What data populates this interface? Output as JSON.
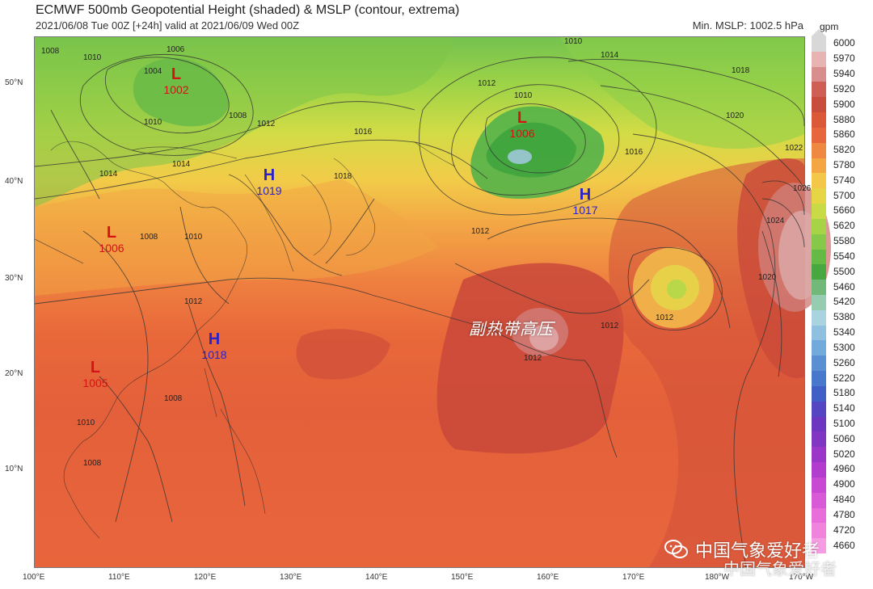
{
  "header": {
    "title": "ECMWF 500mb Geopotential Height (shaded) & MSLP (contour, extrema)",
    "subtitle": "2021/06/08 Tue 00Z [+24h] valid at 2021/06/09 Wed 00Z",
    "min_mslp": "Min. MSLP: 1002.5 hPa"
  },
  "map": {
    "latitude_labels": [
      "50°N",
      "40°N",
      "30°N",
      "20°N",
      "10°N"
    ],
    "longitude_labels": [
      "100°E",
      "110°E",
      "120°E",
      "130°E",
      "140°E",
      "150°E",
      "160°E",
      "170°E",
      "180°W",
      "170°W"
    ],
    "pressure_centers": [
      {
        "type": "L",
        "value": "1002",
        "lon": 116,
        "lat": 51
      },
      {
        "type": "L",
        "value": "1006",
        "lon": 157,
        "lat": 46
      },
      {
        "type": "H",
        "value": "1019",
        "lon": 127,
        "lat": 41
      },
      {
        "type": "H",
        "value": "1017",
        "lon": 164,
        "lat": 39
      },
      {
        "type": "L",
        "value": "1006",
        "lon": 109,
        "lat": 36
      },
      {
        "type": "H",
        "value": "1018",
        "lon": 121,
        "lat": 25
      },
      {
        "type": "L",
        "value": "1005",
        "lon": 107,
        "lat": 22
      }
    ],
    "region_label": "副热带高压",
    "contour_labels": [
      "1008",
      "1010",
      "1006",
      "1004",
      "1010",
      "1014",
      "1014",
      "1012",
      "1008",
      "1016",
      "1018",
      "1012",
      "1010",
      "1010",
      "1014",
      "1018",
      "1020",
      "1022",
      "1026",
      "1024",
      "1020",
      "1016",
      "1012",
      "1012",
      "1012",
      "1012",
      "1008",
      "1010",
      "1012",
      "1008",
      "1010",
      "1008"
    ]
  },
  "colorbar": {
    "unit": "gpm",
    "levels": [
      "6000",
      "5970",
      "5940",
      "5920",
      "5900",
      "5880",
      "5860",
      "5820",
      "5780",
      "5740",
      "5700",
      "5660",
      "5620",
      "5580",
      "5540",
      "5500",
      "5460",
      "5420",
      "5380",
      "5340",
      "5300",
      "5260",
      "5220",
      "5180",
      "5140",
      "5100",
      "5060",
      "5020",
      "4960",
      "4900",
      "4840",
      "4780",
      "4720",
      "4660"
    ],
    "colors": [
      "#d8d8d8",
      "#e7b3b3",
      "#d98e8e",
      "#cf5f55",
      "#c94d3c",
      "#db5838",
      "#e8663b",
      "#ef8840",
      "#f4a643",
      "#f3c848",
      "#e6d646",
      "#c8db46",
      "#a6d446",
      "#86c94a",
      "#64ba45",
      "#47a740",
      "#71b879",
      "#96ccb0",
      "#a8d3df",
      "#8fc0df",
      "#72aadb",
      "#5a8fd3",
      "#4878cc",
      "#3f5fc6",
      "#5645c2",
      "#6c36c1",
      "#8136c3",
      "#9a36c8",
      "#b23cce",
      "#c84ad3",
      "#d95ad6",
      "#e86dda",
      "#f084dd",
      "#f69ce2"
    ]
  },
  "watermark": {
    "line1": "中国气象爱好者",
    "line2": "中国气象爱好者",
    "icon": "wechat-icon"
  }
}
